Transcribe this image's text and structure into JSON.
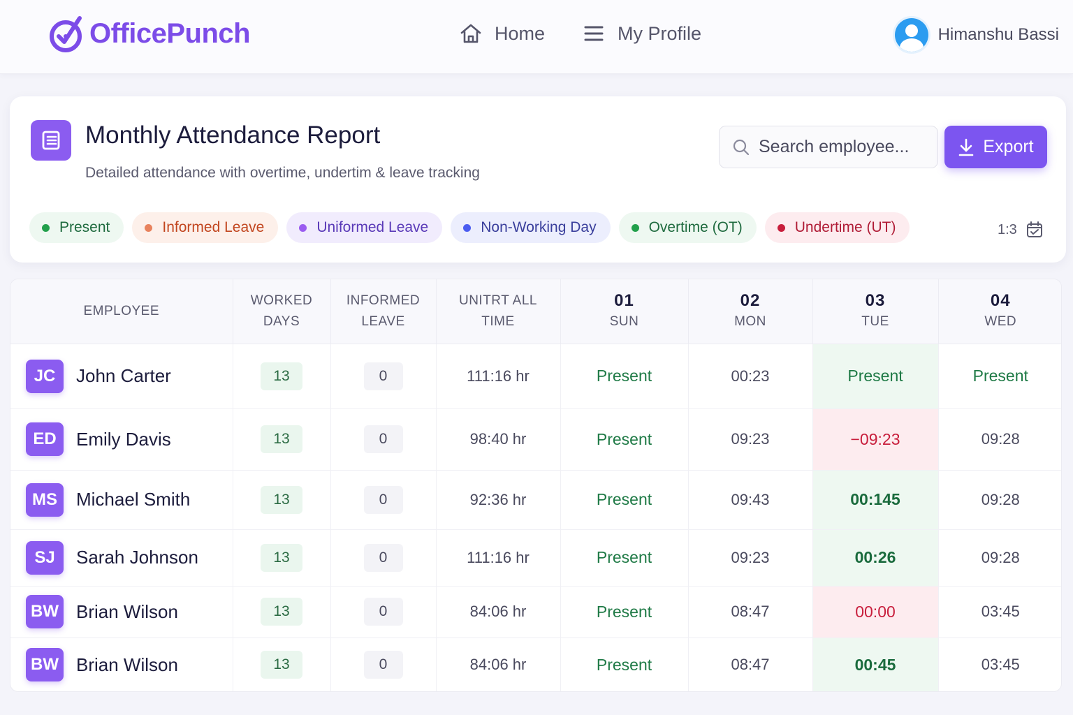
{
  "brand": {
    "name": "OfficePunch"
  },
  "nav": {
    "home_label": "Home",
    "profile_label": "My Profile"
  },
  "user": {
    "name": "Himanshu Bassi"
  },
  "report": {
    "title": "Monthly Attendance Report",
    "subtitle": "Detailed attendance with overtime, undertim & leave tracking",
    "search_placeholder": "Search employee...",
    "export_label": "Export",
    "ratio_label": "1:3"
  },
  "legend": [
    {
      "label": "Present",
      "color": "#22a04b",
      "bg": "#eef8f1",
      "text": "#1f6b3f"
    },
    {
      "label": "Informed Leave",
      "color": "#e8825d",
      "bg": "#fdf0ea",
      "text": "#c2461f"
    },
    {
      "label": "Uniformed Leave",
      "color": "#9a5cf0",
      "bg": "#f1ecfd",
      "text": "#5a3ab8"
    },
    {
      "label": "Non-Working Day",
      "color": "#4a5cf0",
      "bg": "#eceefd",
      "text": "#3a3f9c"
    },
    {
      "label": "Overtime (OT)",
      "color": "#22a04b",
      "bg": "#eef8f1",
      "text": "#1f6b3f"
    },
    {
      "label": "Undertime (UT)",
      "color": "#c81e3c",
      "bg": "#fdecef",
      "text": "#b01c36"
    }
  ],
  "table": {
    "headers": {
      "employee": "EMPLOYEE",
      "worked_1": "WORKED",
      "worked_2": "DAYS",
      "informed_1": "INFORMED",
      "informed_2": "LEAVE",
      "unitrt_1": "UNITRT ALL",
      "unitrt_2": "TIME"
    },
    "days": [
      {
        "num": "01",
        "name": "SUN"
      },
      {
        "num": "02",
        "name": "MON"
      },
      {
        "num": "03",
        "name": "TUE"
      },
      {
        "num": "04",
        "name": "WED"
      }
    ],
    "rows": [
      {
        "initials": "JC",
        "name": "John Carter",
        "worked": "13",
        "informed": "0",
        "total": "111:16 hr",
        "d1": "Present",
        "d2": "00:23",
        "d3": "Present",
        "d4": "Present"
      },
      {
        "initials": "ED",
        "name": "Emily Davis",
        "worked": "13",
        "informed": "0",
        "total": "98:40 hr",
        "d1": "Present",
        "d2": "09:23",
        "d3": "−09:23",
        "d4": "09:28"
      },
      {
        "initials": "MS",
        "name": "Michael Smith",
        "worked": "13",
        "informed": "0",
        "total": "92:36 hr",
        "d1": "Present",
        "d2": "09:43",
        "d3": "00:145",
        "d4": "09:28"
      },
      {
        "initials": "SJ",
        "name": "Sarah Johnson",
        "worked": "13",
        "informed": "0",
        "total": "111:16 hr",
        "d1": "Present",
        "d2": "09:23",
        "d3": "00:26",
        "d4": "09:28"
      },
      {
        "initials": "BW",
        "name": "Brian Wilson",
        "worked": "13",
        "informed": "0",
        "total": "84:06 hr",
        "d1": "Present",
        "d2": "08:47",
        "d3": "00:00",
        "d4": "03:45"
      },
      {
        "initials": "BW",
        "name": "Brian Wilson",
        "worked": "13",
        "informed": "0",
        "total": "84:06 hr",
        "d1": "Present",
        "d2": "08:47",
        "d3": "00:45",
        "d4": "03:45"
      }
    ]
  }
}
